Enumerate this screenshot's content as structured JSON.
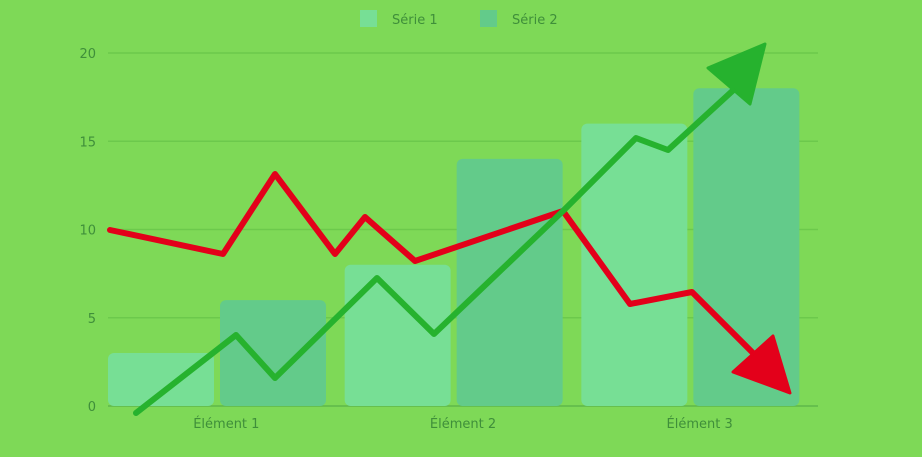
{
  "chart_data": {
    "type": "bar",
    "categories": [
      "Élément 1",
      "Élément 2",
      "Élément 3"
    ],
    "series": [
      {
        "name": "Série 1",
        "values": [
          3,
          8,
          16
        ],
        "color": "#77df95"
      },
      {
        "name": "Série 2",
        "values": [
          6,
          14,
          18
        ],
        "color": "#63cb8a"
      }
    ],
    "ylim": [
      0,
      20
    ],
    "yticks": [
      0,
      5,
      10,
      15,
      20
    ],
    "grid": true,
    "legend": "top-center",
    "overlays": {
      "trend_up_color": "#26b22e",
      "trend_down_color": "#e3001a"
    }
  }
}
